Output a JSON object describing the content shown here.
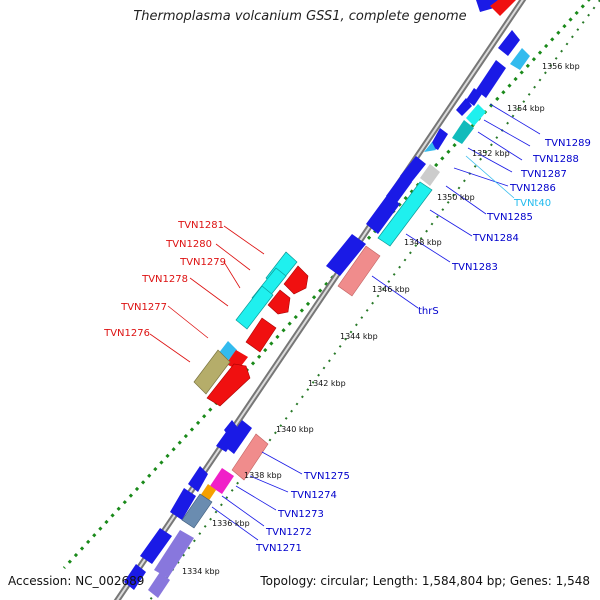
{
  "title": "Thermoplasma volcanium GSS1, complete genome",
  "footer": {
    "accession": "Accession: NC_002689",
    "topology": "Topology: circular; Length: 1,584,804 bp; Genes: 1,548"
  },
  "scale_ticks": [
    "1334 kbp",
    "1336 kbp",
    "1338 kbp",
    "1340 kbp",
    "1342 kbp",
    "1344 kbp",
    "1346 kbp",
    "1348 kbp",
    "1350 kbp",
    "1352 kbp",
    "1354 kbp",
    "1356 kbp"
  ],
  "gene_labels_forward": [
    "TVN1276",
    "TVN1277",
    "TVN1278",
    "TVN1279",
    "TVN1280",
    "TVN1281"
  ],
  "gene_labels_reverse": [
    "TVN1271",
    "TVN1272",
    "TVN1273",
    "TVN1274",
    "TVN1275",
    "thrS",
    "TVN1283",
    "TVN1284",
    "TVN1285",
    "TVNt40",
    "TVN1286",
    "TVN1287",
    "TVN1288",
    "TVN1289"
  ],
  "colors": {
    "forward_label": "#dd1111",
    "reverse_label": "#0000cc",
    "trna_label": "#22bbee",
    "blue": "#1a1ae6",
    "cyan": "#1ff0ee",
    "red": "#f01010",
    "pink": "#f08c8c",
    "magenta": "#f020c8",
    "orange": "#f5a000",
    "olive": "#b5ad6a",
    "steel": "#6a8cb0",
    "lavender": "#8877dd",
    "grey": "#cccccc",
    "sky": "#33bbee",
    "teal": "#11bbbb",
    "gc_dots": "#1a8a1a",
    "skew_dots": "#2a6a2a"
  }
}
